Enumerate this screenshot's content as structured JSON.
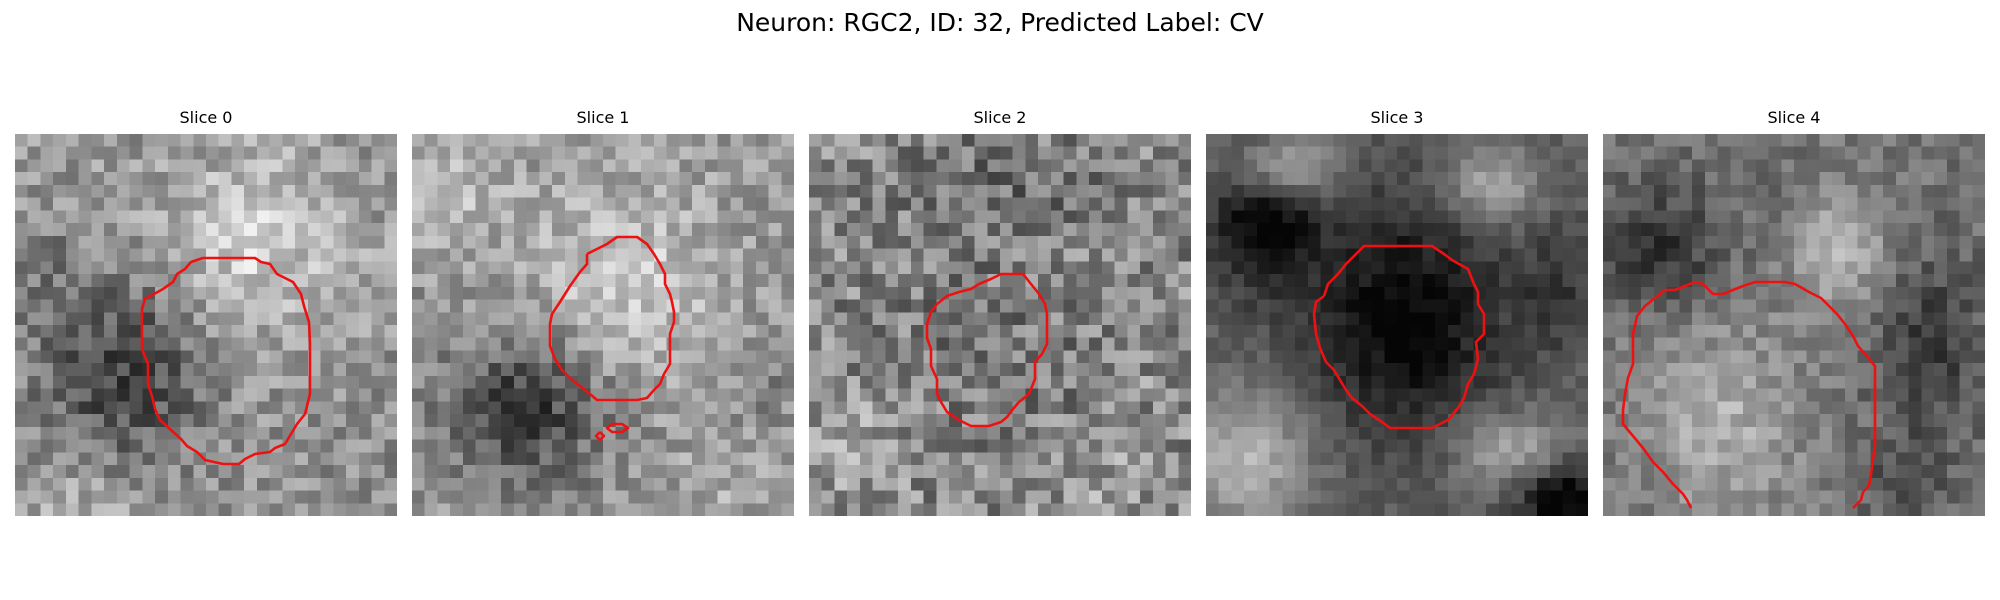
{
  "figure": {
    "title": "Neuron: RGC2, ID: 32, Predicted Label: CV"
  },
  "colors": {
    "contour": "#ee1111",
    "background": "#ffffff"
  },
  "panels": [
    {
      "title": "Slice 0"
    },
    {
      "title": "Slice 1"
    },
    {
      "title": "Slice 2"
    },
    {
      "title": "Slice 3"
    },
    {
      "title": "Slice 4"
    }
  ]
}
